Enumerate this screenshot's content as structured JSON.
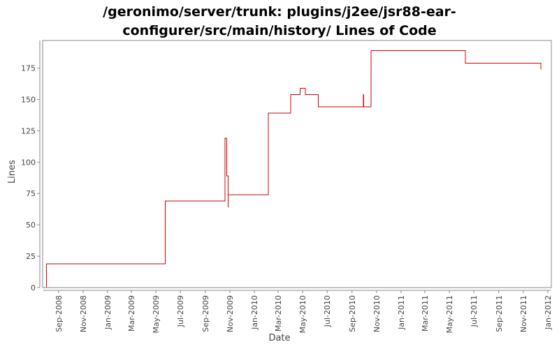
{
  "chart_data": {
    "type": "line",
    "title_line1": "/geronimo/server/trunk: plugins/j2ee/jsr88-ear-",
    "title_line2": "configurer/src/main/history/ Lines of Code",
    "xlabel": "Date",
    "ylabel": "Lines",
    "ylim": [
      0,
      197
    ],
    "xlim": [
      "2008-07-25",
      "2012-01-08"
    ],
    "grid": false,
    "legend": "none",
    "line_color": "#cc0000",
    "y_ticks": [
      0,
      25,
      50,
      75,
      100,
      125,
      150,
      175
    ],
    "x_ticks": [
      {
        "date": "2008-09-01",
        "label": "Sep-2008"
      },
      {
        "date": "2008-11-01",
        "label": "Nov-2008"
      },
      {
        "date": "2009-01-01",
        "label": "Jan-2009"
      },
      {
        "date": "2009-03-01",
        "label": "Mar-2009"
      },
      {
        "date": "2009-05-01",
        "label": "May-2009"
      },
      {
        "date": "2009-07-01",
        "label": "Jul-2009"
      },
      {
        "date": "2009-09-01",
        "label": "Sep-2009"
      },
      {
        "date": "2009-11-01",
        "label": "Nov-2009"
      },
      {
        "date": "2010-01-01",
        "label": "Jan-2010"
      },
      {
        "date": "2010-03-01",
        "label": "Mar-2010"
      },
      {
        "date": "2010-05-01",
        "label": "May-2010"
      },
      {
        "date": "2010-07-01",
        "label": "Jul-2010"
      },
      {
        "date": "2010-09-01",
        "label": "Sep-2010"
      },
      {
        "date": "2010-11-01",
        "label": "Nov-2010"
      },
      {
        "date": "2011-01-01",
        "label": "Jan-2011"
      },
      {
        "date": "2011-03-01",
        "label": "Mar-2011"
      },
      {
        "date": "2011-05-01",
        "label": "May-2011"
      },
      {
        "date": "2011-07-01",
        "label": "Jul-2011"
      },
      {
        "date": "2011-09-01",
        "label": "Sep-2011"
      },
      {
        "date": "2011-11-01",
        "label": "Nov-2011"
      },
      {
        "date": "2012-01-01",
        "label": "Jan-2012"
      }
    ],
    "series": [
      {
        "step": "post",
        "points": [
          [
            "2008-08-02",
            0
          ],
          [
            "2008-08-02",
            19
          ],
          [
            "2009-05-24",
            69
          ],
          [
            "2009-10-20",
            119
          ],
          [
            "2009-10-24",
            89
          ],
          [
            "2009-10-28",
            64
          ],
          [
            "2009-10-28",
            74
          ],
          [
            "2010-02-05",
            139
          ],
          [
            "2010-04-01",
            154
          ],
          [
            "2010-04-25",
            159
          ],
          [
            "2010-05-08",
            154
          ],
          [
            "2010-06-09",
            144
          ],
          [
            "2010-09-29",
            154
          ],
          [
            "2010-09-30",
            144
          ],
          [
            "2010-10-18",
            189
          ],
          [
            "2011-06-10",
            179
          ],
          [
            "2011-12-15",
            174
          ]
        ]
      }
    ]
  }
}
